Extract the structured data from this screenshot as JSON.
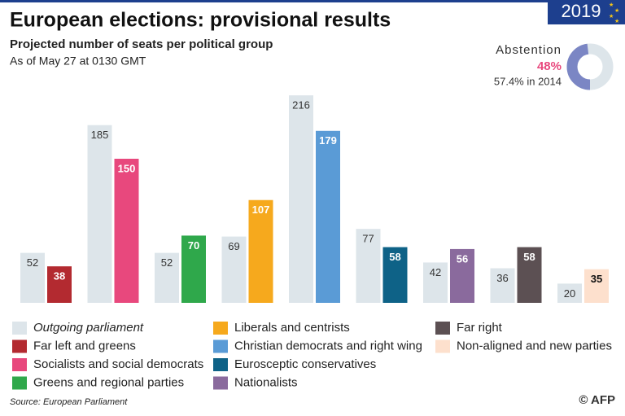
{
  "chart_data": {
    "type": "bar",
    "title": "European elections: provisional results",
    "subtitle": "Projected number of seats per political group",
    "note": "As of May 27 at 0130 GMT",
    "year_badge": "2019",
    "source": "Source: European Parliament",
    "credit": "© AFP",
    "categories": [
      "Far left and greens",
      "Socialists and social democrats",
      "Greens and regional parties",
      "Liberals and centrists",
      "Christian democrats and right wing",
      "Eurosceptic conservatives",
      "Nationalists",
      "Far right",
      "Non-aligned and new parties"
    ],
    "colors": [
      "#b32a30",
      "#e8487d",
      "#2fa84b",
      "#f6a91d",
      "#5a9bd6",
      "#0e6287",
      "#8a6a9d",
      "#5c5053",
      "#fde0cd"
    ],
    "series": [
      {
        "name": "Outgoing parliament",
        "color": "#dde5ea",
        "values": [
          52,
          185,
          52,
          69,
          216,
          77,
          42,
          36,
          20
        ]
      },
      {
        "values": [
          38,
          150,
          70,
          107,
          179,
          58,
          56,
          58,
          35
        ]
      }
    ],
    "abstention": {
      "label": "Abstention",
      "value": 48,
      "value_label": "48%",
      "previous": "57.4% in 2014",
      "color": "#7b86c4",
      "track_color": "#dde5ea"
    }
  }
}
